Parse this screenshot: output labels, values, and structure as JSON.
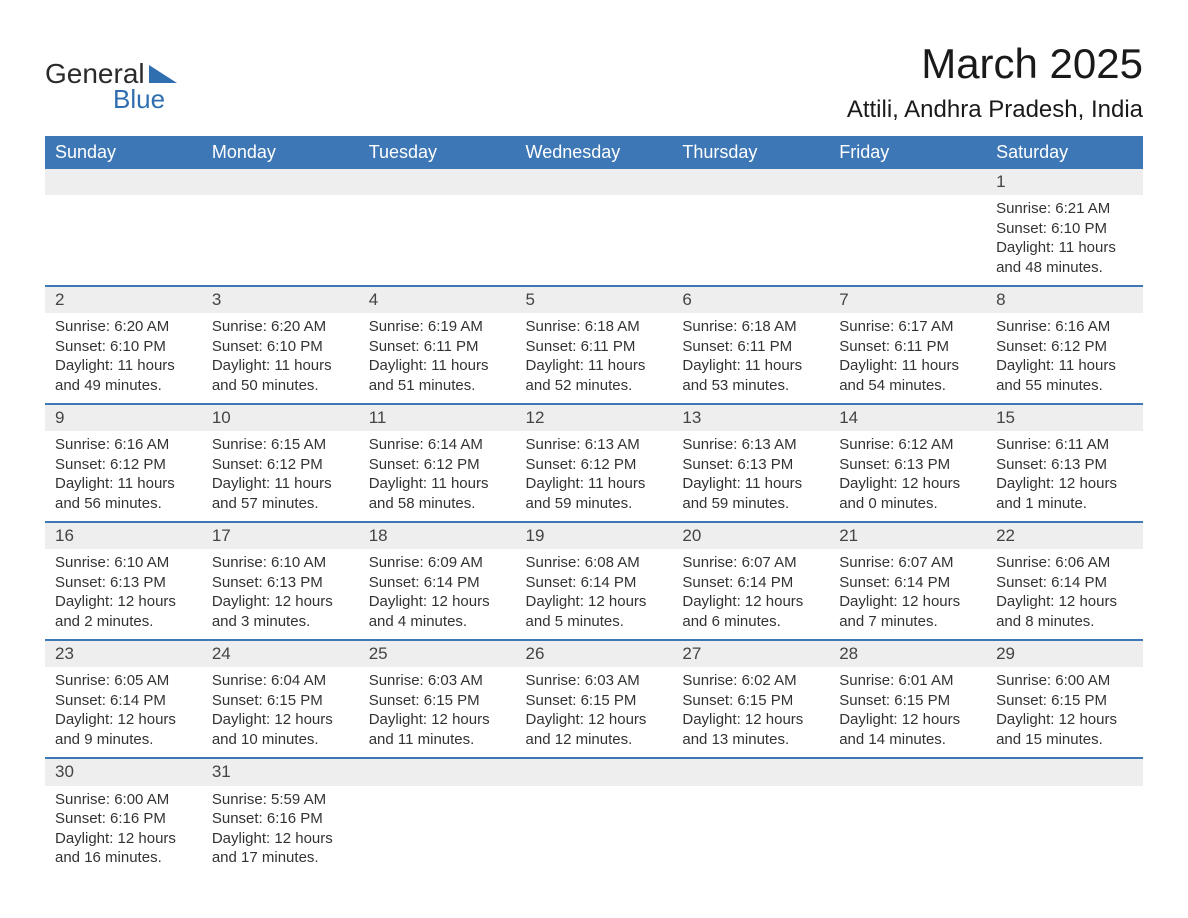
{
  "logo": {
    "text1": "General",
    "text2": "Blue",
    "text1_color": "#2b2b2b",
    "text2_color": "#2f6fb0",
    "shape_color": "#2f6fb0"
  },
  "header": {
    "month_title": "March 2025",
    "location": "Attili, Andhra Pradesh, India"
  },
  "styling": {
    "header_bg": "#3d77b6",
    "header_text": "#ffffff",
    "daynum_bg": "#eeeeee",
    "row_border": "#3d77b6",
    "body_text": "#333333",
    "title_fontsize": 42,
    "location_fontsize": 24,
    "th_fontsize": 18,
    "cell_fontsize": 15
  },
  "columns": [
    "Sunday",
    "Monday",
    "Tuesday",
    "Wednesday",
    "Thursday",
    "Friday",
    "Saturday"
  ],
  "weeks": [
    {
      "days": [
        null,
        null,
        null,
        null,
        null,
        null,
        {
          "n": "1",
          "sunrise": "Sunrise: 6:21 AM",
          "sunset": "Sunset: 6:10 PM",
          "daylight": "Daylight: 11 hours and 48 minutes."
        }
      ]
    },
    {
      "days": [
        {
          "n": "2",
          "sunrise": "Sunrise: 6:20 AM",
          "sunset": "Sunset: 6:10 PM",
          "daylight": "Daylight: 11 hours and 49 minutes."
        },
        {
          "n": "3",
          "sunrise": "Sunrise: 6:20 AM",
          "sunset": "Sunset: 6:10 PM",
          "daylight": "Daylight: 11 hours and 50 minutes."
        },
        {
          "n": "4",
          "sunrise": "Sunrise: 6:19 AM",
          "sunset": "Sunset: 6:11 PM",
          "daylight": "Daylight: 11 hours and 51 minutes."
        },
        {
          "n": "5",
          "sunrise": "Sunrise: 6:18 AM",
          "sunset": "Sunset: 6:11 PM",
          "daylight": "Daylight: 11 hours and 52 minutes."
        },
        {
          "n": "6",
          "sunrise": "Sunrise: 6:18 AM",
          "sunset": "Sunset: 6:11 PM",
          "daylight": "Daylight: 11 hours and 53 minutes."
        },
        {
          "n": "7",
          "sunrise": "Sunrise: 6:17 AM",
          "sunset": "Sunset: 6:11 PM",
          "daylight": "Daylight: 11 hours and 54 minutes."
        },
        {
          "n": "8",
          "sunrise": "Sunrise: 6:16 AM",
          "sunset": "Sunset: 6:12 PM",
          "daylight": "Daylight: 11 hours and 55 minutes."
        }
      ]
    },
    {
      "days": [
        {
          "n": "9",
          "sunrise": "Sunrise: 6:16 AM",
          "sunset": "Sunset: 6:12 PM",
          "daylight": "Daylight: 11 hours and 56 minutes."
        },
        {
          "n": "10",
          "sunrise": "Sunrise: 6:15 AM",
          "sunset": "Sunset: 6:12 PM",
          "daylight": "Daylight: 11 hours and 57 minutes."
        },
        {
          "n": "11",
          "sunrise": "Sunrise: 6:14 AM",
          "sunset": "Sunset: 6:12 PM",
          "daylight": "Daylight: 11 hours and 58 minutes."
        },
        {
          "n": "12",
          "sunrise": "Sunrise: 6:13 AM",
          "sunset": "Sunset: 6:12 PM",
          "daylight": "Daylight: 11 hours and 59 minutes."
        },
        {
          "n": "13",
          "sunrise": "Sunrise: 6:13 AM",
          "sunset": "Sunset: 6:13 PM",
          "daylight": "Daylight: 11 hours and 59 minutes."
        },
        {
          "n": "14",
          "sunrise": "Sunrise: 6:12 AM",
          "sunset": "Sunset: 6:13 PM",
          "daylight": "Daylight: 12 hours and 0 minutes."
        },
        {
          "n": "15",
          "sunrise": "Sunrise: 6:11 AM",
          "sunset": "Sunset: 6:13 PM",
          "daylight": "Daylight: 12 hours and 1 minute."
        }
      ]
    },
    {
      "days": [
        {
          "n": "16",
          "sunrise": "Sunrise: 6:10 AM",
          "sunset": "Sunset: 6:13 PM",
          "daylight": "Daylight: 12 hours and 2 minutes."
        },
        {
          "n": "17",
          "sunrise": "Sunrise: 6:10 AM",
          "sunset": "Sunset: 6:13 PM",
          "daylight": "Daylight: 12 hours and 3 minutes."
        },
        {
          "n": "18",
          "sunrise": "Sunrise: 6:09 AM",
          "sunset": "Sunset: 6:14 PM",
          "daylight": "Daylight: 12 hours and 4 minutes."
        },
        {
          "n": "19",
          "sunrise": "Sunrise: 6:08 AM",
          "sunset": "Sunset: 6:14 PM",
          "daylight": "Daylight: 12 hours and 5 minutes."
        },
        {
          "n": "20",
          "sunrise": "Sunrise: 6:07 AM",
          "sunset": "Sunset: 6:14 PM",
          "daylight": "Daylight: 12 hours and 6 minutes."
        },
        {
          "n": "21",
          "sunrise": "Sunrise: 6:07 AM",
          "sunset": "Sunset: 6:14 PM",
          "daylight": "Daylight: 12 hours and 7 minutes."
        },
        {
          "n": "22",
          "sunrise": "Sunrise: 6:06 AM",
          "sunset": "Sunset: 6:14 PM",
          "daylight": "Daylight: 12 hours and 8 minutes."
        }
      ]
    },
    {
      "days": [
        {
          "n": "23",
          "sunrise": "Sunrise: 6:05 AM",
          "sunset": "Sunset: 6:14 PM",
          "daylight": "Daylight: 12 hours and 9 minutes."
        },
        {
          "n": "24",
          "sunrise": "Sunrise: 6:04 AM",
          "sunset": "Sunset: 6:15 PM",
          "daylight": "Daylight: 12 hours and 10 minutes."
        },
        {
          "n": "25",
          "sunrise": "Sunrise: 6:03 AM",
          "sunset": "Sunset: 6:15 PM",
          "daylight": "Daylight: 12 hours and 11 minutes."
        },
        {
          "n": "26",
          "sunrise": "Sunrise: 6:03 AM",
          "sunset": "Sunset: 6:15 PM",
          "daylight": "Daylight: 12 hours and 12 minutes."
        },
        {
          "n": "27",
          "sunrise": "Sunrise: 6:02 AM",
          "sunset": "Sunset: 6:15 PM",
          "daylight": "Daylight: 12 hours and 13 minutes."
        },
        {
          "n": "28",
          "sunrise": "Sunrise: 6:01 AM",
          "sunset": "Sunset: 6:15 PM",
          "daylight": "Daylight: 12 hours and 14 minutes."
        },
        {
          "n": "29",
          "sunrise": "Sunrise: 6:00 AM",
          "sunset": "Sunset: 6:15 PM",
          "daylight": "Daylight: 12 hours and 15 minutes."
        }
      ]
    },
    {
      "days": [
        {
          "n": "30",
          "sunrise": "Sunrise: 6:00 AM",
          "sunset": "Sunset: 6:16 PM",
          "daylight": "Daylight: 12 hours and 16 minutes."
        },
        {
          "n": "31",
          "sunrise": "Sunrise: 5:59 AM",
          "sunset": "Sunset: 6:16 PM",
          "daylight": "Daylight: 12 hours and 17 minutes."
        },
        null,
        null,
        null,
        null,
        null
      ]
    }
  ]
}
